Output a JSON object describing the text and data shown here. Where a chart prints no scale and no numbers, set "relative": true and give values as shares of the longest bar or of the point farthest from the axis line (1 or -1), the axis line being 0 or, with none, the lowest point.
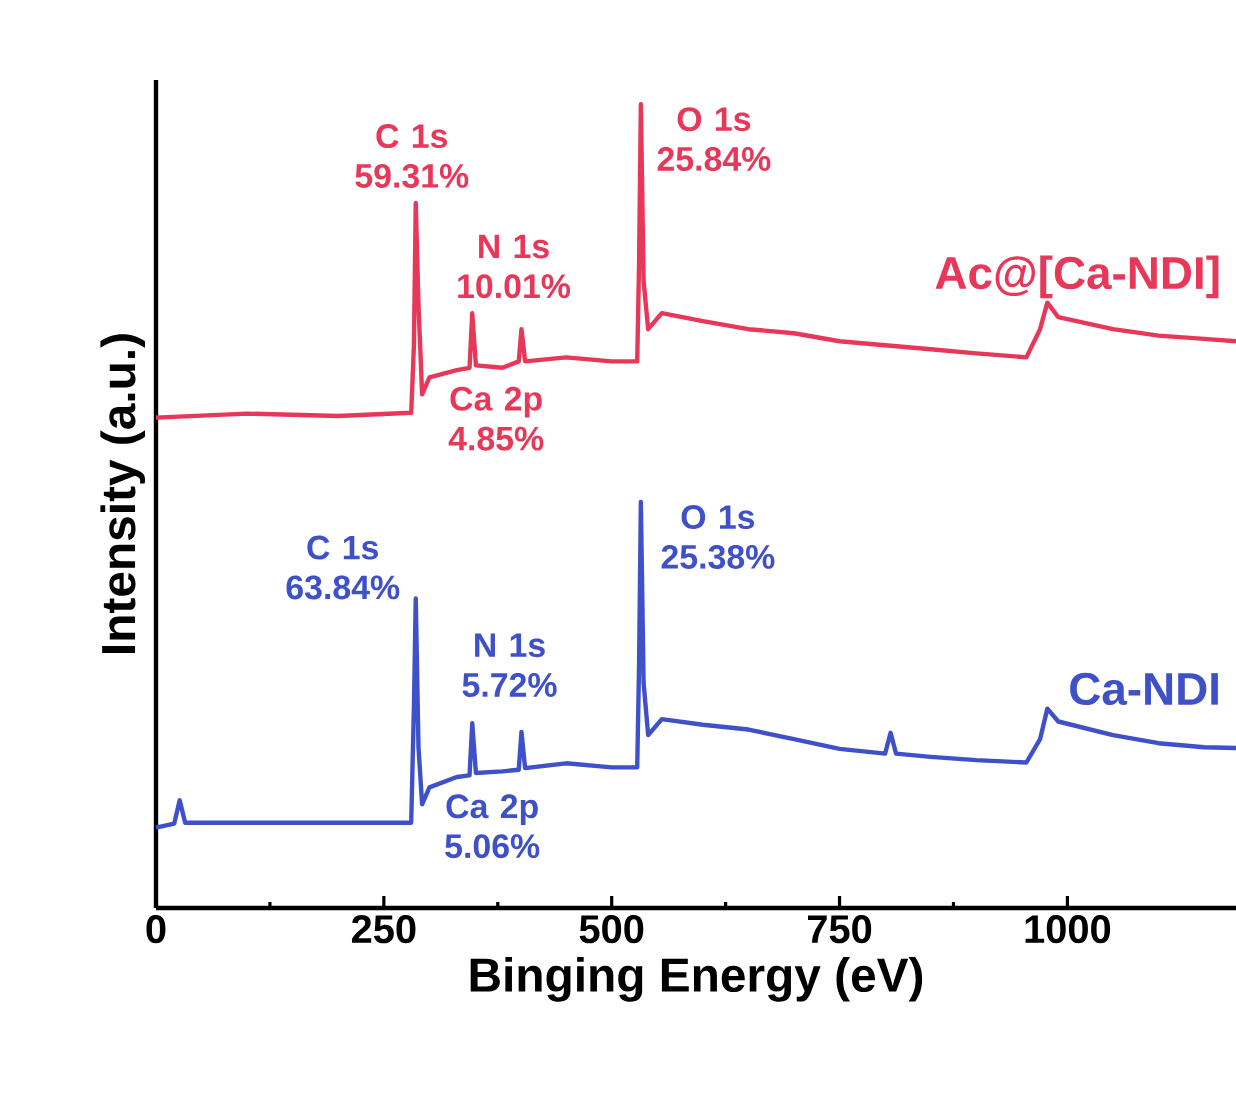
{
  "chart_data": {
    "type": "line",
    "relative": true,
    "xlabel": "Binging Energy (eV)",
    "ylabel": "Intensity (a.u.)",
    "xlim": [
      0,
      1185
    ],
    "xticks": [
      0,
      250,
      500,
      750,
      1000
    ],
    "legend": false,
    "grid": false,
    "series": [
      {
        "name": "Ac@[Ca-NDI]",
        "color": "#e8385a",
        "x": [
          0,
          100,
          200,
          280,
          283,
          285,
          288,
          292,
          300,
          330,
          344,
          347,
          351,
          380,
          398,
          401,
          405,
          450,
          500,
          528,
          530,
          532,
          535,
          540,
          555,
          600,
          650,
          700,
          750,
          800,
          850,
          900,
          955,
          970,
          978,
          990,
          1050,
          1100,
          1150,
          1185
        ],
        "values": [
          0.61,
          0.615,
          0.612,
          0.616,
          0.7,
          0.877,
          0.75,
          0.639,
          0.66,
          0.669,
          0.672,
          0.74,
          0.675,
          0.672,
          0.68,
          0.72,
          0.68,
          0.685,
          0.68,
          0.68,
          0.8,
          1.0,
          0.78,
          0.72,
          0.74,
          0.73,
          0.72,
          0.715,
          0.705,
          0.7,
          0.695,
          0.69,
          0.685,
          0.72,
          0.753,
          0.735,
          0.72,
          0.712,
          0.708,
          0.705
        ]
      },
      {
        "name": "Ca-NDI",
        "color": "#3f51c8",
        "x": [
          0,
          20,
          26,
          32,
          100,
          200,
          280,
          283,
          285,
          288,
          292,
          300,
          330,
          344,
          347,
          351,
          380,
          398,
          401,
          405,
          450,
          500,
          528,
          530,
          532,
          535,
          540,
          555,
          600,
          650,
          700,
          750,
          800,
          806,
          812,
          850,
          900,
          955,
          970,
          978,
          990,
          1050,
          1100,
          1150,
          1185
        ],
        "values": [
          0.1,
          0.105,
          0.134,
          0.106,
          0.106,
          0.106,
          0.106,
          0.25,
          0.385,
          0.2,
          0.129,
          0.15,
          0.163,
          0.165,
          0.23,
          0.168,
          0.17,
          0.172,
          0.219,
          0.174,
          0.18,
          0.175,
          0.175,
          0.3,
          0.505,
          0.28,
          0.215,
          0.235,
          0.228,
          0.222,
          0.21,
          0.198,
          0.192,
          0.218,
          0.192,
          0.188,
          0.184,
          0.181,
          0.21,
          0.248,
          0.232,
          0.215,
          0.205,
          0.2,
          0.199
        ]
      }
    ],
    "annotations": [
      {
        "text": "C 1s 59.31%",
        "x": 285,
        "y": 0.877
      },
      {
        "text": "O 1s 25.84%",
        "x": 532,
        "y": 1.0
      },
      {
        "text": "N 1s 10.01%",
        "x": 401,
        "y": 0.72
      },
      {
        "text": "Ca 2p 4.85%",
        "x": 347,
        "y": 0.672
      },
      {
        "text": "C 1s 63.84%",
        "x": 285,
        "y": 0.385
      },
      {
        "text": "O 1s 25.38%",
        "x": 532,
        "y": 0.505
      },
      {
        "text": "N 1s 5.72%",
        "x": 401,
        "y": 0.219
      },
      {
        "text": "Ca 2p 5.06%",
        "x": 347,
        "y": 0.165
      }
    ]
  }
}
